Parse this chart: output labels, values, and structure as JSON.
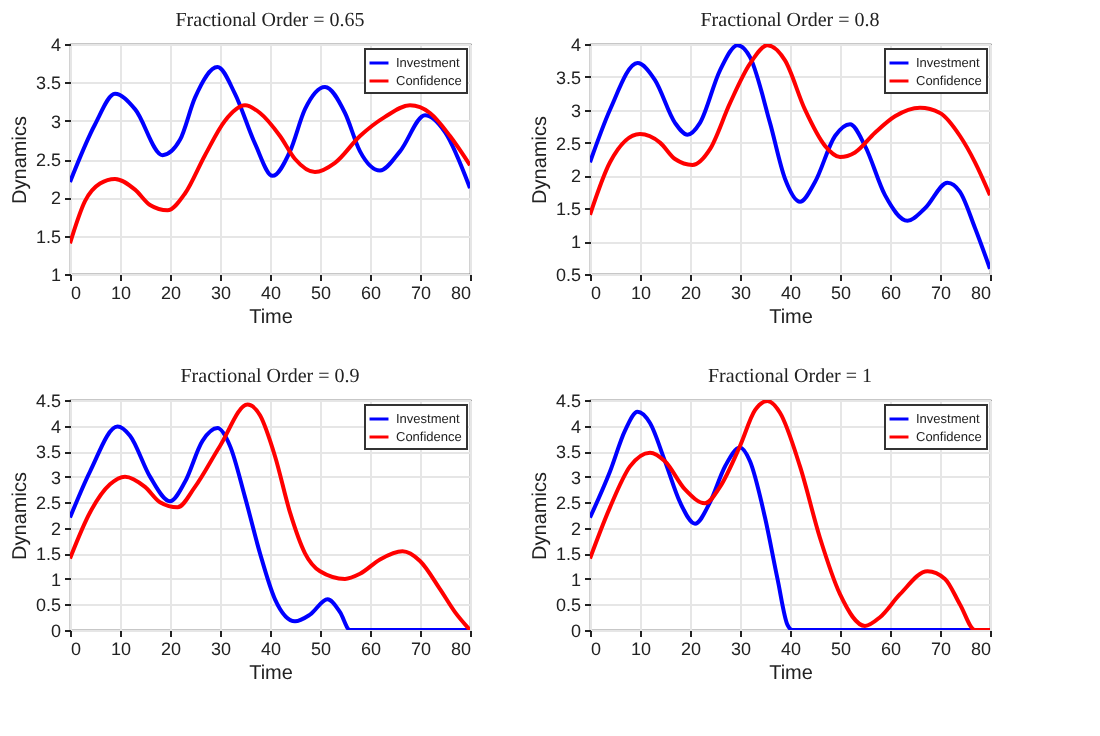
{
  "chart_data": [
    {
      "type": "line",
      "title": "Fractional Order = 0.65",
      "xlabel": "Time",
      "ylabel": "Dynamics",
      "xlim": [
        0,
        80
      ],
      "xticks": [
        0,
        10,
        20,
        30,
        40,
        50,
        60,
        70,
        80
      ],
      "ylim": [
        1,
        4
      ],
      "yticks": [
        1,
        1.5,
        2,
        2.5,
        3,
        3.5,
        4
      ],
      "grid": true,
      "legend": "top right",
      "series": [
        {
          "name": "Investment",
          "color": "#0000ff",
          "x": [
            0,
            5,
            9,
            13,
            18.5,
            22,
            25,
            29.5,
            33,
            37,
            40.5,
            44,
            47,
            51,
            55,
            58,
            62,
            66,
            71,
            75,
            80
          ],
          "values": [
            2.2,
            2.95,
            3.35,
            3.15,
            2.55,
            2.75,
            3.3,
            3.7,
            3.35,
            2.7,
            2.28,
            2.6,
            3.15,
            3.44,
            3.1,
            2.6,
            2.35,
            2.6,
            3.07,
            2.85,
            2.12
          ]
        },
        {
          "name": "Confidence",
          "color": "#ff0000",
          "x": [
            0,
            3,
            6,
            9,
            13,
            16,
            19.5,
            23,
            27,
            31,
            35,
            38,
            42,
            45,
            49,
            53,
            58,
            63,
            68,
            72,
            76,
            80
          ],
          "values": [
            1.4,
            1.95,
            2.18,
            2.24,
            2.1,
            1.9,
            1.83,
            2.05,
            2.55,
            3.0,
            3.2,
            3.1,
            2.8,
            2.5,
            2.33,
            2.45,
            2.8,
            3.05,
            3.2,
            3.1,
            2.8,
            2.42
          ]
        }
      ]
    },
    {
      "type": "line",
      "title": "Fractional Order = 0.8",
      "xlabel": "Time",
      "ylabel": "Dynamics",
      "xlim": [
        0,
        80
      ],
      "xticks": [
        0,
        10,
        20,
        30,
        40,
        50,
        60,
        70,
        80
      ],
      "ylim": [
        0.5,
        4
      ],
      "yticks": [
        0.5,
        1,
        1.5,
        2,
        2.5,
        3,
        3.5,
        4
      ],
      "grid": true,
      "legend": "top right",
      "series": [
        {
          "name": "Investment",
          "color": "#0000ff",
          "x": [
            0,
            4,
            9.5,
            13,
            17,
            19.5,
            22,
            26,
            29.5,
            32,
            36,
            39,
            42,
            45,
            49,
            52,
            55,
            59,
            63.5,
            67,
            71.5,
            74,
            77,
            80
          ],
          "values": [
            2.2,
            3.0,
            3.71,
            3.45,
            2.8,
            2.62,
            2.8,
            3.6,
            3.98,
            3.8,
            2.8,
            1.95,
            1.6,
            1.9,
            2.6,
            2.78,
            2.45,
            1.7,
            1.31,
            1.5,
            1.89,
            1.75,
            1.2,
            0.58
          ]
        },
        {
          "name": "Confidence",
          "color": "#ff0000",
          "x": [
            0,
            4,
            10,
            14,
            17,
            20.5,
            24,
            28,
            32,
            35.5,
            39,
            43,
            47,
            50,
            53,
            57,
            61,
            66,
            70,
            74,
            77,
            80
          ],
          "values": [
            1.4,
            2.2,
            2.63,
            2.5,
            2.25,
            2.16,
            2.4,
            3.1,
            3.7,
            3.98,
            3.75,
            3.0,
            2.45,
            2.28,
            2.35,
            2.65,
            2.9,
            3.03,
            2.95,
            2.6,
            2.2,
            1.7
          ]
        }
      ]
    },
    {
      "type": "line",
      "title": "Fractional Order = 0.9",
      "xlabel": "Time",
      "ylabel": "Dynamics",
      "xlim": [
        0,
        80
      ],
      "xticks": [
        0,
        10,
        20,
        30,
        40,
        50,
        60,
        70,
        80
      ],
      "ylim": [
        0,
        4.5
      ],
      "yticks": [
        0,
        0.5,
        1,
        1.5,
        2,
        2.5,
        3,
        3.5,
        4,
        4.5
      ],
      "grid": true,
      "legend": "top right",
      "series": [
        {
          "name": "Investment",
          "color": "#0000ff",
          "x": [
            0,
            4,
            9.5,
            12,
            16,
            20,
            23,
            26.5,
            29.5,
            32,
            35,
            38,
            41,
            45,
            48,
            51.5,
            54,
            56,
            80
          ],
          "values": [
            2.2,
            3.1,
            3.98,
            3.8,
            3.0,
            2.52,
            2.9,
            3.7,
            3.95,
            3.6,
            2.6,
            1.5,
            0.6,
            0.17,
            0.3,
            0.6,
            0.35,
            0,
            0
          ]
        },
        {
          "name": "Confidence",
          "color": "#ff0000",
          "x": [
            0,
            4,
            8,
            11,
            15,
            18,
            21.5,
            25,
            30,
            35.5,
            38,
            41,
            44,
            47,
            50,
            55,
            58,
            62,
            66.5,
            70,
            74,
            77,
            80
          ],
          "values": [
            1.4,
            2.3,
            2.85,
            3.0,
            2.8,
            2.5,
            2.4,
            2.8,
            3.6,
            4.41,
            4.2,
            3.4,
            2.3,
            1.5,
            1.15,
            1.0,
            1.1,
            1.38,
            1.54,
            1.35,
            0.8,
            0.35,
            0
          ]
        }
      ]
    },
    {
      "type": "line",
      "title": "Fractional Order = 1",
      "xlabel": "Time",
      "ylabel": "Dynamics",
      "xlim": [
        0,
        80
      ],
      "xticks": [
        0,
        10,
        20,
        30,
        40,
        50,
        60,
        70,
        80
      ],
      "ylim": [
        0,
        4.5
      ],
      "yticks": [
        0,
        0.5,
        1,
        1.5,
        2,
        2.5,
        3,
        3.5,
        4,
        4.5
      ],
      "grid": true,
      "legend": "top right",
      "series": [
        {
          "name": "Investment",
          "color": "#0000ff",
          "x": [
            0,
            4,
            7,
            9.5,
            12,
            15,
            18,
            21,
            24,
            27,
            30,
            32,
            35,
            37.5,
            39.5,
            40.5,
            80
          ],
          "values": [
            2.2,
            3.1,
            3.9,
            4.27,
            4.05,
            3.3,
            2.5,
            2.08,
            2.5,
            3.2,
            3.57,
            3.3,
            2.2,
            1.0,
            0.1,
            0,
            0
          ]
        },
        {
          "name": "Confidence",
          "color": "#ff0000",
          "x": [
            0,
            4,
            8,
            12,
            15,
            19,
            23,
            26,
            30,
            33,
            35.5,
            38,
            42,
            46,
            50,
            55,
            58,
            62,
            67.5,
            71,
            74,
            77,
            80
          ],
          "values": [
            1.4,
            2.4,
            3.2,
            3.47,
            3.3,
            2.75,
            2.48,
            2.8,
            3.6,
            4.3,
            4.48,
            4.25,
            3.2,
            1.8,
            0.7,
            0.08,
            0.25,
            0.7,
            1.15,
            1.0,
            0.5,
            0,
            0
          ]
        }
      ]
    }
  ]
}
